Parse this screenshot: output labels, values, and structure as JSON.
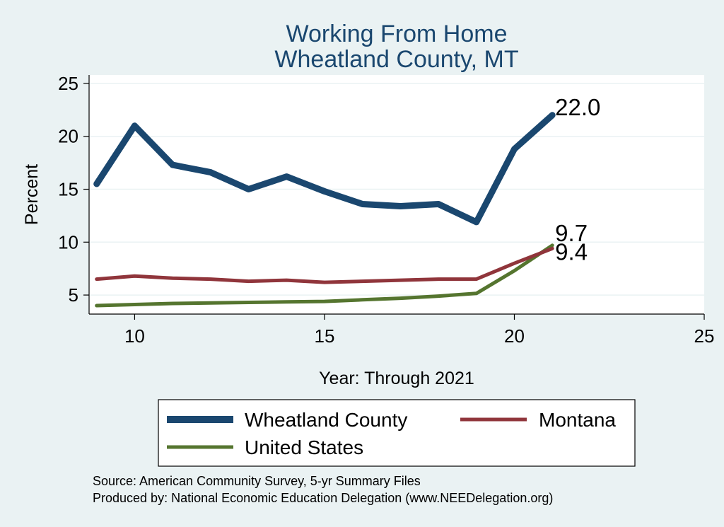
{
  "chart_data": {
    "type": "line",
    "title": [
      "Working From Home",
      "Wheatland County, MT"
    ],
    "xlabel": "Year: Through 2021",
    "ylabel": "Percent",
    "xlim": [
      8.8,
      25
    ],
    "ylim": [
      3.2,
      25.8
    ],
    "xticks": [
      10,
      15,
      20,
      25
    ],
    "yticks": [
      5,
      10,
      15,
      20,
      25
    ],
    "grid": "horizontal",
    "legend_position": "bottom",
    "x": [
      9,
      10,
      11,
      12,
      13,
      14,
      15,
      16,
      17,
      18,
      19,
      20,
      21
    ],
    "series": [
      {
        "name": "Wheatland County",
        "color": "#1a476f",
        "values": [
          15.5,
          21.0,
          17.3,
          16.6,
          15.0,
          16.2,
          14.8,
          13.6,
          13.4,
          13.6,
          11.9,
          18.8,
          22.0
        ],
        "end_label": "22.0"
      },
      {
        "name": "Montana",
        "color": "#90353b",
        "values": [
          6.5,
          6.8,
          6.6,
          6.5,
          6.3,
          6.4,
          6.2,
          6.3,
          6.4,
          6.5,
          6.5,
          8.0,
          9.4
        ],
        "end_label": "9.4"
      },
      {
        "name": "United States",
        "color": "#55752f",
        "values": [
          4.0,
          4.1,
          4.2,
          4.25,
          4.3,
          4.35,
          4.4,
          4.55,
          4.7,
          4.9,
          5.15,
          7.3,
          9.7
        ],
        "end_label": "9.7"
      }
    ],
    "notes": [
      "Source: American Community Survey, 5-yr Summary Files",
      "Produced by: National Economic Education Delegation (www.NEEDelegation.org)"
    ]
  }
}
